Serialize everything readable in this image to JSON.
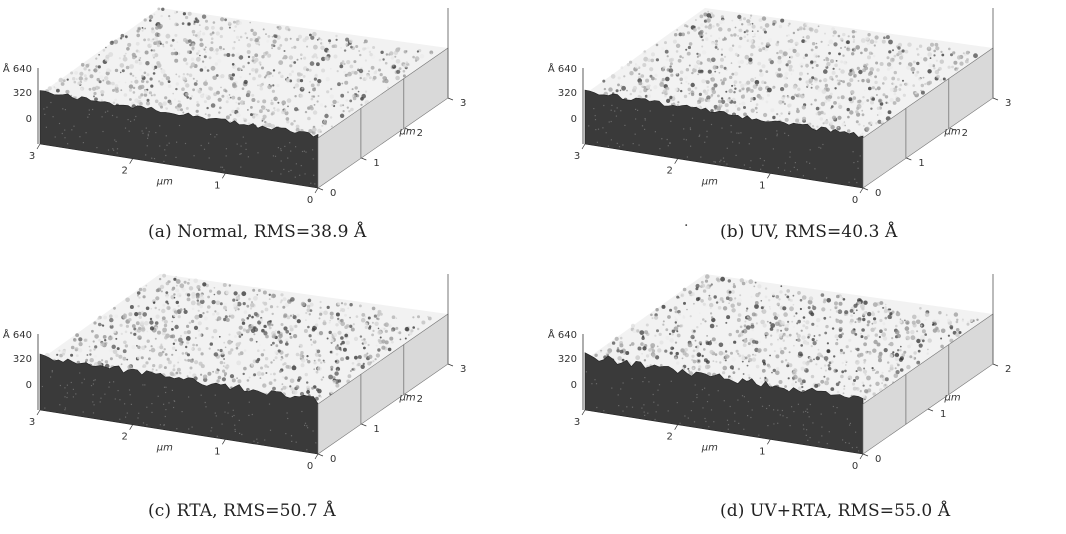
{
  "figure": {
    "panels": [
      {
        "id": "a",
        "caption": "(a) Normal, RMS=38.9 Å",
        "z_ticks": [
          "Å 640",
          "320",
          "0"
        ],
        "x_ticks": [
          "3",
          "2",
          "1",
          "0"
        ],
        "x_unit": "μm",
        "y_ticks": [
          "0",
          "1",
          "2",
          "3"
        ],
        "y_unit": "μm",
        "roughness_rms_angstrom": 38.9
      },
      {
        "id": "b",
        "caption": "(b) UV, RMS=40.3 Å",
        "z_ticks": [
          "Å 640",
          "320",
          "0"
        ],
        "x_ticks": [
          "3",
          "2",
          "1",
          "0"
        ],
        "x_unit": "μm",
        "y_ticks": [
          "0",
          "1",
          "2",
          "3"
        ],
        "y_unit": "μm",
        "roughness_rms_angstrom": 40.3
      },
      {
        "id": "c",
        "caption": "(c) RTA, RMS=50.7 Å",
        "z_ticks": [
          "Å 640",
          "320",
          "0"
        ],
        "x_ticks": [
          "3",
          "2",
          "1",
          "0"
        ],
        "x_unit": "μm",
        "y_ticks": [
          "0",
          "1",
          "2",
          "3"
        ],
        "y_unit": "μm",
        "roughness_rms_angstrom": 50.7
      },
      {
        "id": "d",
        "caption": "(d) UV+RTA, RMS=55.0 Å",
        "z_ticks": [
          "Å 640",
          "320",
          "0"
        ],
        "x_ticks": [
          "3",
          "2",
          "1",
          "0"
        ],
        "x_unit": "μm",
        "y_ticks": [
          "0",
          "1",
          "2"
        ],
        "y_unit": "μm",
        "roughness_rms_angstrom": 55.0
      }
    ]
  }
}
